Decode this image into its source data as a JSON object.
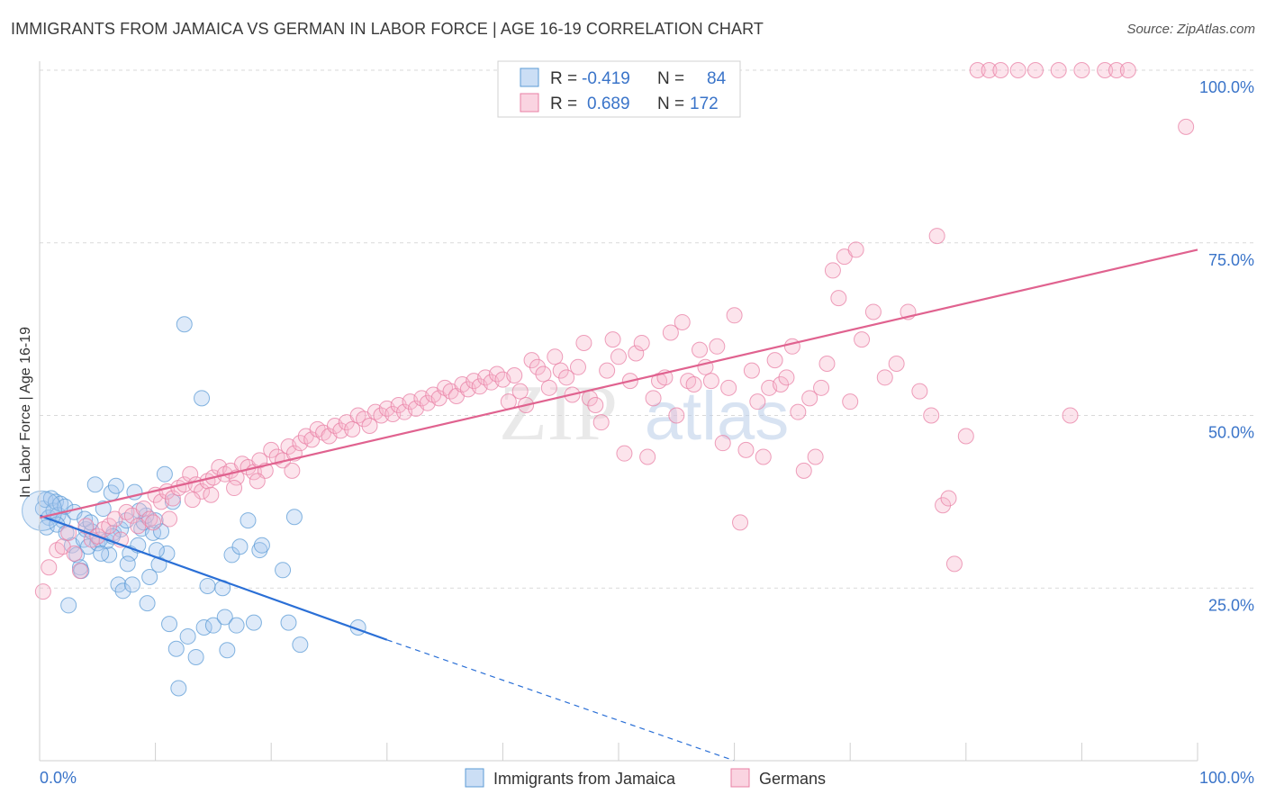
{
  "title": "IMMIGRANTS FROM JAMAICA VS GERMAN IN LABOR FORCE | AGE 16-19 CORRELATION CHART",
  "source": "Source: ZipAtlas.com",
  "watermark": {
    "zip": "ZIP",
    "atlas": "atlas"
  },
  "colors": {
    "blue": "#5b9bd5",
    "blue_fill": "#a8c8ee",
    "blue_line": "#2a6fd6",
    "pink": "#e87fa4",
    "pink_fill": "#f6b8cd",
    "pink_line": "#e0628f",
    "axis_label": "#3a74c9",
    "grid": "#d9d9d9"
  },
  "legend_top": [
    {
      "r_label": "R =",
      "r_value": "-0.419",
      "n_label": "N =",
      "n_value": "84",
      "color": "blue"
    },
    {
      "r_label": "R =",
      "r_value": "0.689",
      "n_label": "N =",
      "n_value": "172",
      "color": "pink"
    }
  ],
  "legend_bottom": [
    {
      "label": "Immigrants from Jamaica",
      "color": "blue"
    },
    {
      "label": "Germans",
      "color": "pink"
    }
  ],
  "chart_data": {
    "type": "scatter",
    "title": "IMMIGRANTS FROM JAMAICA VS GERMAN IN LABOR FORCE | AGE 16-19 CORRELATION CHART",
    "ylabel": "In Labor Force | Age 16-19",
    "xlabel": "",
    "xlim": [
      0,
      100
    ],
    "ylim": [
      0,
      100
    ],
    "x_tick_labels": [
      {
        "value": 0,
        "label": "0.0%"
      },
      {
        "value": 100,
        "label": "100.0%"
      }
    ],
    "y_tick_labels": [
      {
        "value": 25,
        "label": "25.0%"
      },
      {
        "value": 50,
        "label": "50.0%"
      },
      {
        "value": 75,
        "label": "75.0%"
      },
      {
        "value": 100,
        "label": "100.0%"
      }
    ],
    "grid": true,
    "legend_position": "top-center",
    "series": [
      {
        "name": "Immigrants from Jamaica",
        "color": "blue",
        "trend": {
          "x": [
            0,
            30
          ],
          "y": [
            35.5,
            17.5
          ],
          "dashed_to": [
            60,
            0
          ]
        },
        "points": [
          [
            0.3,
            36.5
          ],
          [
            0.5,
            37.8
          ],
          [
            0.8,
            35.2
          ],
          [
            1.0,
            38.0
          ],
          [
            1.2,
            36.2
          ],
          [
            1.4,
            37.5
          ],
          [
            1.6,
            35.6
          ],
          [
            1.8,
            37.2
          ],
          [
            2.0,
            34.8
          ],
          [
            2.2,
            36.8
          ],
          [
            2.5,
            22.5
          ],
          [
            2.8,
            31.2
          ],
          [
            3.0,
            36.0
          ],
          [
            3.2,
            29.8
          ],
          [
            3.5,
            28.0
          ],
          [
            3.6,
            27.5
          ],
          [
            3.8,
            32.0
          ],
          [
            4.0,
            33.5
          ],
          [
            4.2,
            31.0
          ],
          [
            4.5,
            33.2
          ],
          [
            4.8,
            40.0
          ],
          [
            5.0,
            31.5
          ],
          [
            5.2,
            32.0
          ],
          [
            5.5,
            36.5
          ],
          [
            5.8,
            31.8
          ],
          [
            6.0,
            29.8
          ],
          [
            6.2,
            38.8
          ],
          [
            6.4,
            33.0
          ],
          [
            6.6,
            39.8
          ],
          [
            6.8,
            25.5
          ],
          [
            7.0,
            33.5
          ],
          [
            7.2,
            24.6
          ],
          [
            7.5,
            34.8
          ],
          [
            7.8,
            30.0
          ],
          [
            8.0,
            25.5
          ],
          [
            8.2,
            38.9
          ],
          [
            8.5,
            31.2
          ],
          [
            8.8,
            33.6
          ],
          [
            9.0,
            34.5
          ],
          [
            9.3,
            22.8
          ],
          [
            9.5,
            26.6
          ],
          [
            9.8,
            33.0
          ],
          [
            10.0,
            34.8
          ],
          [
            10.3,
            28.4
          ],
          [
            10.5,
            33.2
          ],
          [
            10.8,
            41.5
          ],
          [
            11.0,
            30.0
          ],
          [
            11.2,
            19.8
          ],
          [
            11.5,
            37.5
          ],
          [
            11.8,
            16.2
          ],
          [
            12.0,
            10.5
          ],
          [
            12.5,
            63.2
          ],
          [
            12.8,
            18.0
          ],
          [
            13.5,
            15.0
          ],
          [
            14.0,
            52.5
          ],
          [
            14.2,
            19.3
          ],
          [
            14.5,
            25.3
          ],
          [
            15.0,
            19.6
          ],
          [
            15.8,
            25.0
          ],
          [
            16.0,
            20.8
          ],
          [
            16.2,
            16.0
          ],
          [
            16.6,
            29.8
          ],
          [
            17.0,
            19.6
          ],
          [
            17.3,
            31.0
          ],
          [
            18.0,
            34.8
          ],
          [
            18.5,
            20.0
          ],
          [
            19.0,
            30.5
          ],
          [
            19.2,
            31.2
          ],
          [
            21.0,
            27.6
          ],
          [
            21.5,
            20.0
          ],
          [
            22.0,
            35.3
          ],
          [
            22.5,
            16.8
          ],
          [
            27.5,
            19.3
          ],
          [
            0.6,
            33.8
          ],
          [
            1.5,
            34.2
          ],
          [
            2.3,
            33.0
          ],
          [
            3.9,
            35.0
          ],
          [
            5.3,
            30.0
          ],
          [
            6.3,
            32.5
          ],
          [
            7.6,
            28.5
          ],
          [
            9.2,
            35.5
          ],
          [
            10.1,
            30.5
          ],
          [
            4.4,
            34.5
          ],
          [
            8.6,
            36.2
          ]
        ]
      },
      {
        "name": "Germans",
        "color": "pink",
        "trend": {
          "x": [
            0,
            100
          ],
          "y": [
            35.2,
            74.0
          ]
        },
        "points": [
          [
            0.3,
            24.5
          ],
          [
            0.8,
            28.0
          ],
          [
            1.5,
            30.5
          ],
          [
            2.0,
            31.0
          ],
          [
            2.5,
            33.0
          ],
          [
            3.0,
            30.0
          ],
          [
            3.5,
            27.5
          ],
          [
            4.0,
            34.0
          ],
          [
            4.5,
            32.0
          ],
          [
            5.0,
            32.5
          ],
          [
            5.5,
            33.5
          ],
          [
            6.0,
            34.0
          ],
          [
            6.5,
            35.0
          ],
          [
            7.0,
            32.0
          ],
          [
            7.5,
            36.0
          ],
          [
            8.0,
            35.5
          ],
          [
            8.5,
            34.0
          ],
          [
            9.0,
            36.5
          ],
          [
            9.5,
            35.0
          ],
          [
            10.0,
            38.5
          ],
          [
            10.5,
            37.5
          ],
          [
            11.0,
            39.0
          ],
          [
            11.5,
            38.0
          ],
          [
            12.0,
            39.5
          ],
          [
            12.5,
            40.0
          ],
          [
            13.0,
            41.5
          ],
          [
            13.5,
            40.0
          ],
          [
            14.0,
            39.0
          ],
          [
            14.5,
            40.5
          ],
          [
            15.0,
            41.0
          ],
          [
            15.5,
            42.5
          ],
          [
            16.0,
            41.5
          ],
          [
            16.5,
            42.0
          ],
          [
            17.0,
            41.0
          ],
          [
            17.5,
            43.0
          ],
          [
            18.0,
            42.5
          ],
          [
            18.5,
            41.8
          ],
          [
            19.0,
            43.5
          ],
          [
            19.5,
            42.0
          ],
          [
            20.0,
            45.0
          ],
          [
            20.5,
            44.0
          ],
          [
            21.0,
            43.5
          ],
          [
            21.5,
            45.5
          ],
          [
            22.0,
            44.5
          ],
          [
            22.5,
            46.0
          ],
          [
            23.0,
            47.0
          ],
          [
            23.5,
            46.5
          ],
          [
            24.0,
            48.0
          ],
          [
            24.5,
            47.5
          ],
          [
            25.0,
            47.0
          ],
          [
            25.5,
            48.5
          ],
          [
            26.0,
            47.8
          ],
          [
            26.5,
            49.0
          ],
          [
            27.0,
            48.0
          ],
          [
            27.5,
            50.0
          ],
          [
            28.0,
            49.5
          ],
          [
            28.5,
            48.5
          ],
          [
            29.0,
            50.5
          ],
          [
            29.5,
            50.0
          ],
          [
            30.0,
            51.0
          ],
          [
            30.5,
            50.2
          ],
          [
            31.0,
            51.5
          ],
          [
            31.5,
            50.5
          ],
          [
            32.0,
            52.0
          ],
          [
            32.5,
            51.0
          ],
          [
            33.0,
            52.5
          ],
          [
            33.5,
            51.8
          ],
          [
            34.0,
            53.0
          ],
          [
            34.5,
            52.5
          ],
          [
            35.0,
            54.0
          ],
          [
            35.5,
            53.5
          ],
          [
            36.0,
            52.8
          ],
          [
            36.5,
            54.5
          ],
          [
            37.0,
            53.8
          ],
          [
            37.5,
            55.0
          ],
          [
            38.0,
            54.2
          ],
          [
            38.5,
            55.5
          ],
          [
            39.0,
            54.8
          ],
          [
            39.5,
            56.0
          ],
          [
            40.0,
            55.2
          ],
          [
            40.5,
            52.0
          ],
          [
            41.0,
            55.8
          ],
          [
            41.5,
            53.5
          ],
          [
            42.0,
            51.5
          ],
          [
            42.5,
            58.0
          ],
          [
            43.0,
            57.0
          ],
          [
            43.5,
            56.0
          ],
          [
            44.0,
            54.0
          ],
          [
            44.5,
            58.5
          ],
          [
            45.0,
            56.5
          ],
          [
            45.5,
            55.5
          ],
          [
            46.0,
            53.0
          ],
          [
            46.5,
            57.0
          ],
          [
            47.0,
            60.5
          ],
          [
            47.5,
            52.5
          ],
          [
            48.0,
            51.5
          ],
          [
            48.5,
            49.0
          ],
          [
            49.0,
            56.5
          ],
          [
            49.5,
            61.0
          ],
          [
            50.0,
            58.5
          ],
          [
            50.5,
            44.5
          ],
          [
            51.0,
            55.0
          ],
          [
            51.5,
            59.0
          ],
          [
            52.0,
            60.5
          ],
          [
            52.5,
            44.0
          ],
          [
            53.0,
            52.5
          ],
          [
            53.5,
            55.0
          ],
          [
            54.0,
            55.5
          ],
          [
            54.5,
            62.0
          ],
          [
            55.0,
            50.0
          ],
          [
            55.5,
            63.5
          ],
          [
            56.0,
            55.0
          ],
          [
            56.5,
            54.5
          ],
          [
            57.0,
            59.5
          ],
          [
            57.5,
            57.0
          ],
          [
            58.0,
            55.0
          ],
          [
            58.5,
            60.0
          ],
          [
            59.0,
            46.0
          ],
          [
            59.5,
            54.0
          ],
          [
            60.0,
            64.5
          ],
          [
            60.5,
            34.5
          ],
          [
            61.0,
            45.0
          ],
          [
            61.5,
            56.5
          ],
          [
            62.0,
            52.0
          ],
          [
            62.5,
            44.0
          ],
          [
            63.0,
            54.0
          ],
          [
            63.5,
            58.0
          ],
          [
            64.0,
            54.5
          ],
          [
            64.5,
            55.5
          ],
          [
            65.0,
            60.0
          ],
          [
            65.5,
            50.5
          ],
          [
            66.0,
            42.0
          ],
          [
            66.5,
            52.5
          ],
          [
            67.0,
            44.0
          ],
          [
            67.5,
            54.0
          ],
          [
            68.0,
            57.5
          ],
          [
            68.5,
            71.0
          ],
          [
            69.0,
            67.0
          ],
          [
            69.5,
            73.0
          ],
          [
            70.0,
            52.0
          ],
          [
            70.5,
            74.0
          ],
          [
            71.0,
            61.0
          ],
          [
            72.0,
            65.0
          ],
          [
            73.0,
            55.5
          ],
          [
            74.0,
            57.5
          ],
          [
            75.0,
            65.0
          ],
          [
            76.0,
            53.5
          ],
          [
            77.0,
            50.0
          ],
          [
            77.5,
            76.0
          ],
          [
            78.0,
            37.0
          ],
          [
            78.5,
            38.0
          ],
          [
            79.0,
            28.5
          ],
          [
            80.0,
            47.0
          ],
          [
            81.0,
            100.0
          ],
          [
            82.0,
            100.0
          ],
          [
            83.0,
            100.0
          ],
          [
            84.5,
            100.0
          ],
          [
            86.0,
            100.0
          ],
          [
            88.0,
            100.0
          ],
          [
            90.0,
            100.0
          ],
          [
            92.0,
            100.0
          ],
          [
            93.0,
            100.0
          ],
          [
            94.0,
            100.0
          ],
          [
            89.0,
            50.0
          ],
          [
            99.0,
            91.8
          ],
          [
            9.8,
            34.5
          ],
          [
            11.2,
            35.0
          ],
          [
            13.2,
            37.8
          ],
          [
            14.8,
            38.5
          ],
          [
            16.8,
            39.5
          ],
          [
            18.8,
            40.5
          ],
          [
            21.8,
            42.0
          ]
        ]
      }
    ]
  }
}
